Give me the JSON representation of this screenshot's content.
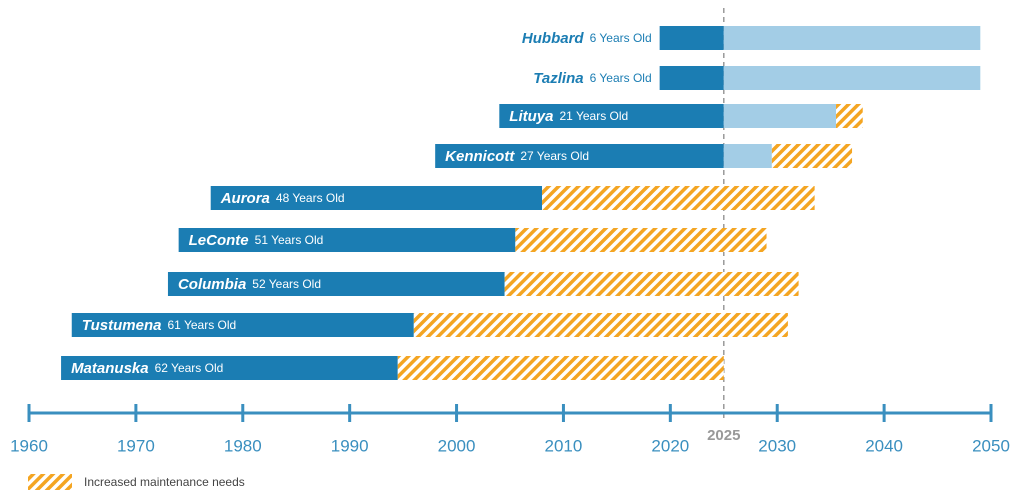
{
  "chart_data": {
    "type": "timeline",
    "xlim": [
      1960,
      2050
    ],
    "xticks": [
      1960,
      1970,
      1980,
      1990,
      2000,
      2010,
      2020,
      2030,
      2040,
      2050
    ],
    "reference_line": 2025,
    "colors": {
      "service": "#1b7db3",
      "life": "#a3cde6",
      "maintenance": "#f4a522",
      "axis": "#3a8fbf"
    },
    "legend": "Increased maintenance needs",
    "rows": [
      {
        "name": "Hubbard",
        "age": "6 Years Old",
        "start": 2019,
        "service_end": 2025,
        "life_end": 2049,
        "maintenance_end": null
      },
      {
        "name": "Tazlina",
        "age": "6 Years Old",
        "start": 2019,
        "service_end": 2025,
        "life_end": 2049,
        "maintenance_end": null
      },
      {
        "name": "Lituya",
        "age": "21 Years Old",
        "start": 2004,
        "service_end": 2025,
        "life_end": 2035.5,
        "maintenance_end": 2038
      },
      {
        "name": "Kennicott",
        "age": "27 Years Old",
        "start": 1998,
        "service_end": 2025,
        "life_end": 2029.5,
        "maintenance_end": 2037
      },
      {
        "name": "Aurora",
        "age": "48 Years Old",
        "start": 1977,
        "service_end": 2008,
        "life_end": null,
        "maintenance_end": 2033.5
      },
      {
        "name": "LeConte",
        "age": "51 Years Old",
        "start": 1974,
        "service_end": 2005.5,
        "life_end": null,
        "maintenance_end": 2029
      },
      {
        "name": "Columbia",
        "age": "52 Years Old",
        "start": 1973,
        "service_end": 2004.5,
        "life_end": null,
        "maintenance_end": 2032
      },
      {
        "name": "Tustumena",
        "age": "61 Years Old",
        "start": 1964,
        "service_end": 1996,
        "life_end": null,
        "maintenance_end": 2031
      },
      {
        "name": "Matanuska",
        "age": "62 Years Old",
        "start": 1963,
        "service_end": 1994.5,
        "life_end": null,
        "maintenance_end": 2025
      }
    ]
  }
}
